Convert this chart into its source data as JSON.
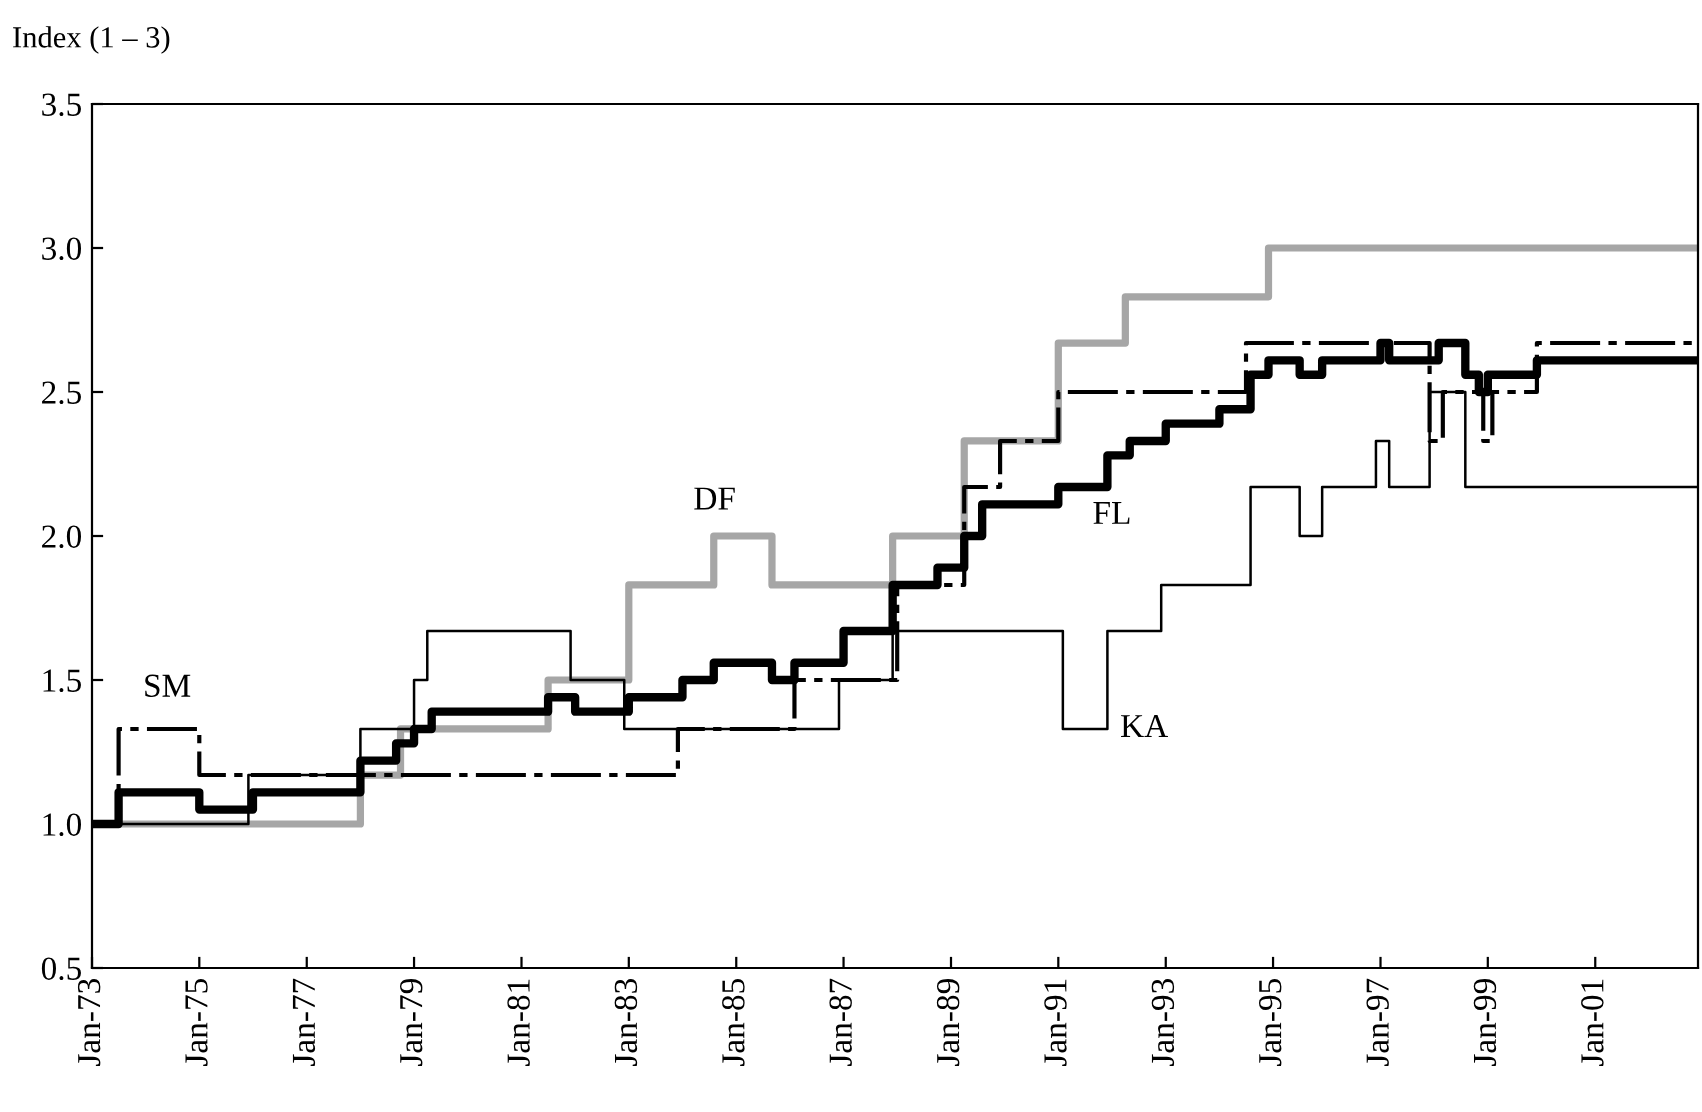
{
  "chart_data": {
    "type": "step",
    "ylabel": "Index (1 – 3)",
    "xlim": [
      "1973-01",
      "2002-12"
    ],
    "xticks": [
      {
        "value": "1973-01",
        "label": "Jan-73"
      },
      {
        "value": "1975-01",
        "label": "Jan-75"
      },
      {
        "value": "1977-01",
        "label": "Jan-77"
      },
      {
        "value": "1979-01",
        "label": "Jan-79"
      },
      {
        "value": "1981-01",
        "label": "Jan-81"
      },
      {
        "value": "1983-01",
        "label": "Jan-83"
      },
      {
        "value": "1985-01",
        "label": "Jan-85"
      },
      {
        "value": "1987-01",
        "label": "Jan-87"
      },
      {
        "value": "1989-01",
        "label": "Jan-89"
      },
      {
        "value": "1991-01",
        "label": "Jan-91"
      },
      {
        "value": "1993-01",
        "label": "Jan-93"
      },
      {
        "value": "1995-01",
        "label": "Jan-95"
      },
      {
        "value": "1997-01",
        "label": "Jan-97"
      },
      {
        "value": "1999-01",
        "label": "Jan-99"
      },
      {
        "value": "2001-01",
        "label": "Jan-01"
      }
    ],
    "ylim": [
      0.5,
      3.5
    ],
    "yticks": [
      {
        "value": 0.5,
        "label": "0.5"
      },
      {
        "value": 1,
        "label": "1.0"
      },
      {
        "value": 1.5,
        "label": "1.5"
      },
      {
        "value": 2,
        "label": "2.0"
      },
      {
        "value": 2.5,
        "label": "2.5"
      },
      {
        "value": 3,
        "label": "3.0"
      },
      {
        "value": 3.5,
        "label": "3.5"
      }
    ],
    "grid": false,
    "legend": false,
    "marker": "none",
    "series": [
      {
        "name": "DF",
        "color": "#a6a6a6",
        "line_style": "solid",
        "x": [
          "1973-01",
          "1978-01",
          "1978-10",
          "1981-07",
          "1983-01",
          "1984-08",
          "1985-09",
          "1987-12",
          "1989-04",
          "1991-01",
          "1992-04",
          "1994-12",
          "2002-12"
        ],
        "values": [
          1.0,
          1.17,
          1.33,
          1.5,
          1.83,
          2.0,
          1.83,
          2.0,
          2.33,
          2.67,
          2.83,
          3.0,
          3.0
        ]
      },
      {
        "name": "SM",
        "color": "#000000",
        "line_style": "dashdot",
        "x": [
          "1973-01",
          "1973-07",
          "1975-01",
          "1983-12",
          "1986-02",
          "1988-01",
          "1989-04",
          "1989-12",
          "1991-01",
          "1994-07",
          "1997-12",
          "1998-03",
          "1998-12",
          "1999-02",
          "1999-12",
          "2002-12"
        ],
        "values": [
          1.0,
          1.33,
          1.17,
          1.33,
          1.5,
          1.83,
          2.17,
          2.33,
          2.5,
          2.67,
          2.33,
          2.5,
          2.33,
          2.5,
          2.67,
          2.67
        ]
      },
      {
        "name": "KA",
        "color": "#000000",
        "line_style": "solid",
        "x": [
          "1973-01",
          "1975-12",
          "1978-01",
          "1979-01",
          "1979-04",
          "1981-12",
          "1982-12",
          "1986-12",
          "1987-12",
          "1991-02",
          "1991-12",
          "1992-12",
          "1994-08",
          "1995-07",
          "1995-12",
          "1996-12",
          "1997-03",
          "1997-12",
          "1998-08",
          "2002-12"
        ],
        "values": [
          1.0,
          1.17,
          1.33,
          1.5,
          1.67,
          1.5,
          1.33,
          1.5,
          1.67,
          1.33,
          1.67,
          1.83,
          2.17,
          2.0,
          2.17,
          2.33,
          2.17,
          2.5,
          2.17,
          2.17
        ]
      },
      {
        "name": "FL",
        "color": "#000000",
        "line_style": "solid",
        "x": [
          "1973-01",
          "1973-07",
          "1975-01",
          "1976-01",
          "1978-01",
          "1978-09",
          "1979-01",
          "1979-05",
          "1981-07",
          "1982-01",
          "1983-01",
          "1984-01",
          "1984-08",
          "1985-09",
          "1986-02",
          "1987-01",
          "1987-12",
          "1988-10",
          "1989-04",
          "1989-08",
          "1991-01",
          "1991-12",
          "1992-05",
          "1993-01",
          "1994-01",
          "1994-08",
          "1994-12",
          "1995-07",
          "1995-12",
          "1997-01",
          "1997-03",
          "1998-02",
          "1998-08",
          "1998-11",
          "1999-01",
          "1999-12",
          "2002-12"
        ],
        "values": [
          1.0,
          1.11,
          1.05,
          1.11,
          1.22,
          1.28,
          1.33,
          1.39,
          1.44,
          1.39,
          1.44,
          1.5,
          1.56,
          1.5,
          1.56,
          1.67,
          1.83,
          1.89,
          2.0,
          2.11,
          2.17,
          2.28,
          2.33,
          2.39,
          2.44,
          2.56,
          2.61,
          2.56,
          2.61,
          2.67,
          2.61,
          2.67,
          2.56,
          2.5,
          2.56,
          2.61,
          2.61
        ]
      }
    ]
  }
}
